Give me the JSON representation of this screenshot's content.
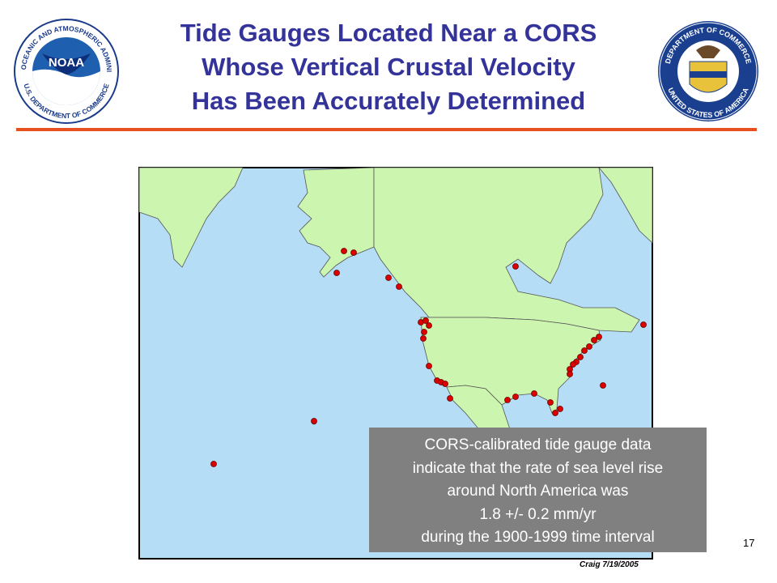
{
  "header": {
    "title_lines": [
      "Tide Gauges Located Near a CORS",
      "Whose Vertical Crustal Velocity",
      "Has Been Accurately Determined"
    ]
  },
  "logos": {
    "noaa": {
      "wordmark": "NOAA",
      "ring_top": "NATIONAL OCEANIC AND ATMOSPHERIC ADMINISTRATION",
      "ring_bottom": "U.S. DEPARTMENT OF COMMERCE"
    },
    "commerce": {
      "ring_top": "DEPARTMENT OF COMMERCE",
      "ring_bottom": "UNITED STATES OF AMERICA"
    }
  },
  "callout": {
    "lines": [
      "CORS-calibrated tide gauge data",
      "indicate that the rate of sea level rise",
      "around North America was",
      "1.8 +/- 0.2 mm/yr",
      "during the 1900-1999 time interval"
    ]
  },
  "footer": {
    "page_number": "17",
    "credit": "Craig 7/19/2005"
  }
}
